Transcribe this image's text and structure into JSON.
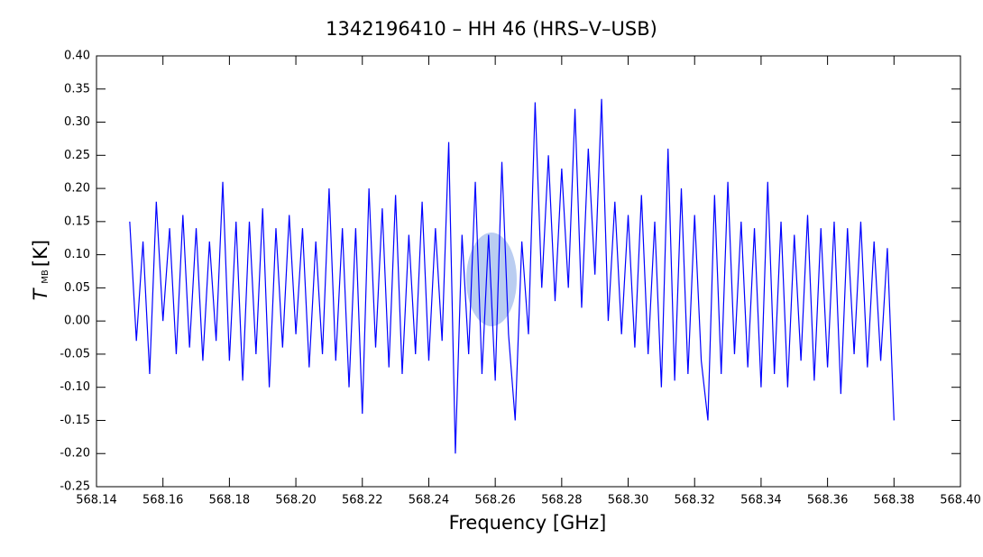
{
  "chart_data": {
    "type": "line",
    "title": "1342196410 – HH 46 (HRS–V–USB)",
    "x_label": "Frequency [GHz]",
    "y_label": "T",
    "y_label_subscript": "MB",
    "y_label_unit": "[K]",
    "x": [
      568.15,
      568.152,
      568.154,
      568.156,
      568.158,
      568.16,
      568.162,
      568.164,
      568.166,
      568.168,
      568.17,
      568.172,
      568.174,
      568.176,
      568.178,
      568.18,
      568.182,
      568.184,
      568.186,
      568.188,
      568.19,
      568.192,
      568.194,
      568.196,
      568.198,
      568.2,
      568.202,
      568.204,
      568.206,
      568.208,
      568.21,
      568.212,
      568.214,
      568.216,
      568.218,
      568.22,
      568.222,
      568.224,
      568.226,
      568.228,
      568.23,
      568.232,
      568.234,
      568.236,
      568.238,
      568.24,
      568.242,
      568.244,
      568.246,
      568.248,
      568.25,
      568.252,
      568.254,
      568.256,
      568.258,
      568.26,
      568.262,
      568.264,
      568.266,
      568.268,
      568.27,
      568.272,
      568.274,
      568.276,
      568.278,
      568.28,
      568.282,
      568.284,
      568.286,
      568.288,
      568.29,
      568.292,
      568.294,
      568.296,
      568.298,
      568.3,
      568.302,
      568.304,
      568.306,
      568.308,
      568.31,
      568.312,
      568.314,
      568.316,
      568.318,
      568.32,
      568.322,
      568.324,
      568.326,
      568.328,
      568.33,
      568.332,
      568.334,
      568.336,
      568.338,
      568.34,
      568.342,
      568.344,
      568.346,
      568.348,
      568.35,
      568.352,
      568.354,
      568.356,
      568.358,
      568.36,
      568.362,
      568.364,
      568.366,
      568.368,
      568.37,
      568.372,
      568.374,
      568.376,
      568.378,
      568.38
    ],
    "series": [
      {
        "color": "#0000ff",
        "values": [
          0.15,
          -0.03,
          0.12,
          -0.08,
          0.18,
          0.0,
          0.14,
          -0.05,
          0.16,
          -0.04,
          0.14,
          -0.06,
          0.12,
          -0.03,
          0.21,
          -0.06,
          0.15,
          -0.09,
          0.15,
          -0.05,
          0.17,
          -0.1,
          0.14,
          -0.04,
          0.16,
          -0.02,
          0.14,
          -0.07,
          0.12,
          -0.05,
          0.2,
          -0.06,
          0.14,
          -0.1,
          0.14,
          -0.14,
          0.2,
          -0.04,
          0.17,
          -0.07,
          0.19,
          -0.08,
          0.13,
          -0.05,
          0.18,
          -0.06,
          0.14,
          -0.03,
          0.27,
          -0.2,
          0.13,
          -0.05,
          0.21,
          -0.08,
          0.13,
          -0.09,
          0.24,
          -0.02,
          -0.15,
          0.12,
          -0.02,
          0.33,
          0.05,
          0.25,
          0.03,
          0.23,
          0.05,
          0.32,
          0.02,
          0.26,
          0.07,
          0.335,
          0.0,
          0.18,
          -0.02,
          0.16,
          -0.04,
          0.19,
          -0.05,
          0.15,
          -0.1,
          0.26,
          -0.09,
          0.2,
          -0.08,
          0.16,
          -0.06,
          -0.15,
          0.19,
          -0.08,
          0.21,
          -0.05,
          0.15,
          -0.07,
          0.14,
          -0.1,
          0.21,
          -0.08,
          0.15,
          -0.1,
          0.13,
          -0.06,
          0.16,
          -0.09,
          0.14,
          -0.07,
          0.15,
          -0.11,
          0.14,
          -0.05,
          0.15,
          -0.07,
          0.12,
          -0.06,
          0.11,
          -0.15
        ]
      }
    ],
    "xlim": [
      568.14,
      568.4
    ],
    "ylim": [
      -0.25,
      0.4
    ],
    "xticks": [
      568.14,
      568.16,
      568.18,
      {
        "value": 568.2,
        "label": "568.20"
      },
      568.22,
      568.24,
      568.26,
      568.28,
      {
        "value": 568.3,
        "label": "568.30"
      },
      568.32,
      568.34,
      568.36,
      568.38,
      {
        "value": 568.4,
        "label": "568.40"
      }
    ],
    "yticks": [
      {
        "value": -0.25,
        "label": "-0.25"
      },
      {
        "value": -0.2,
        "label": "-0.20"
      },
      {
        "value": -0.15,
        "label": "-0.15"
      },
      {
        "value": -0.1,
        "label": "-0.10"
      },
      {
        "value": -0.05,
        "label": "-0.05"
      },
      {
        "value": 0.0,
        "label": "0.00"
      },
      {
        "value": 0.05,
        "label": "0.05"
      },
      {
        "value": 0.1,
        "label": "0.10"
      },
      {
        "value": 0.15,
        "label": "0.15"
      },
      {
        "value": 0.2,
        "label": "0.20"
      },
      {
        "value": 0.25,
        "label": "0.25"
      },
      {
        "value": 0.3,
        "label": "0.30"
      },
      {
        "value": 0.35,
        "label": "0.35"
      },
      {
        "value": 0.4,
        "label": "0.40"
      }
    ]
  }
}
